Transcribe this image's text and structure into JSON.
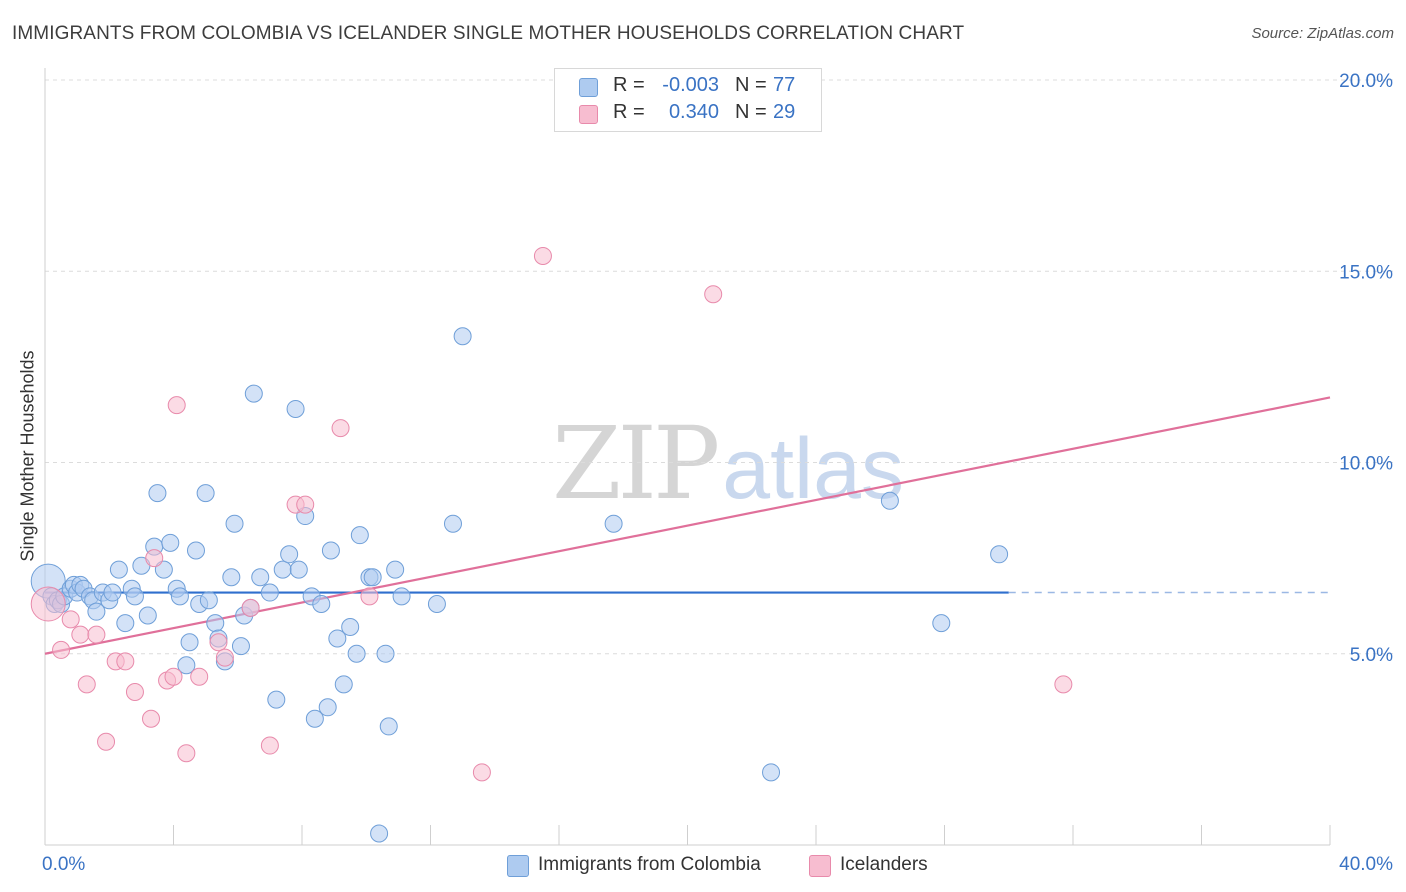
{
  "header": {
    "title": "IMMIGRANTS FROM COLOMBIA VS ICELANDER SINGLE MOTHER HOUSEHOLDS CORRELATION CHART",
    "source": "Source: ZipAtlas.com"
  },
  "watermark": {
    "zip": "ZIP",
    "atlas": "atlas"
  },
  "legend_top": [
    {
      "r_label": "R =",
      "r_value": "-0.003",
      "n_label": "N =",
      "n_value": "77",
      "color": "#aecbf0"
    },
    {
      "r_label": "R =",
      "r_value": "0.340",
      "n_label": "N =",
      "n_value": "29",
      "color": "#f7bdd0"
    }
  ],
  "legend_bottom": [
    {
      "label": "Immigrants from Colombia",
      "color": "#aecbf0"
    },
    {
      "label": "Icelanders",
      "color": "#f7bdd0"
    }
  ],
  "chart_data": {
    "type": "scatter",
    "title": "IMMIGRANTS FROM COLOMBIA VS ICELANDER SINGLE MOTHER HOUSEHOLDS CORRELATION CHART",
    "xlabel": "",
    "ylabel": "Single Mother Households",
    "xlim": [
      0,
      40
    ],
    "ylim": [
      0,
      20
    ],
    "x_tick_labels": [
      "0.0%",
      "40.0%"
    ],
    "y_ticks": [
      5,
      10,
      15,
      20
    ],
    "y_tick_labels": [
      "5.0%",
      "10.0%",
      "15.0%",
      "20.0%"
    ],
    "grid": true,
    "legend_position": "top-center",
    "colors": {
      "axis_text": "#3a73c4",
      "blue_fill": "#aecbf0",
      "blue_stroke": "#6f9fd8",
      "pink_fill": "#f7bdd0",
      "pink_stroke": "#e88aab",
      "blue_line": "#2f6fce",
      "pink_line": "#e0709a"
    },
    "series": [
      {
        "name": "Immigrants from Colombia",
        "r": -0.003,
        "n": 77,
        "trend": {
          "x0": 0,
          "y0": 6.6,
          "x1": 30,
          "y1": 6.6,
          "dashed_to": 40
        },
        "points": [
          [
            0.1,
            6.9
          ],
          [
            0.2,
            6.5
          ],
          [
            0.3,
            6.3
          ],
          [
            0.4,
            6.4
          ],
          [
            0.5,
            6.3
          ],
          [
            0.6,
            6.5
          ],
          [
            0.8,
            6.7
          ],
          [
            0.9,
            6.8
          ],
          [
            1.0,
            6.6
          ],
          [
            1.1,
            6.8
          ],
          [
            1.2,
            6.7
          ],
          [
            1.4,
            6.5
          ],
          [
            1.5,
            6.4
          ],
          [
            1.6,
            6.1
          ],
          [
            1.8,
            6.6
          ],
          [
            2.0,
            6.4
          ],
          [
            2.1,
            6.6
          ],
          [
            2.3,
            7.2
          ],
          [
            2.5,
            5.8
          ],
          [
            2.7,
            6.7
          ],
          [
            2.8,
            6.5
          ],
          [
            3.0,
            7.3
          ],
          [
            3.2,
            6.0
          ],
          [
            3.4,
            7.8
          ],
          [
            3.5,
            9.2
          ],
          [
            3.7,
            7.2
          ],
          [
            3.9,
            7.9
          ],
          [
            4.1,
            6.7
          ],
          [
            4.2,
            6.5
          ],
          [
            4.4,
            4.7
          ],
          [
            4.5,
            5.3
          ],
          [
            4.7,
            7.7
          ],
          [
            4.8,
            6.3
          ],
          [
            5.0,
            9.2
          ],
          [
            5.1,
            6.4
          ],
          [
            5.3,
            5.8
          ],
          [
            5.4,
            5.4
          ],
          [
            5.6,
            4.8
          ],
          [
            5.8,
            7.0
          ],
          [
            5.9,
            8.4
          ],
          [
            6.1,
            5.2
          ],
          [
            6.2,
            6.0
          ],
          [
            6.4,
            6.2
          ],
          [
            6.5,
            11.8
          ],
          [
            6.7,
            7.0
          ],
          [
            7.0,
            6.6
          ],
          [
            7.2,
            3.8
          ],
          [
            7.4,
            7.2
          ],
          [
            7.6,
            7.6
          ],
          [
            7.8,
            11.4
          ],
          [
            7.9,
            7.2
          ],
          [
            8.1,
            8.6
          ],
          [
            8.3,
            6.5
          ],
          [
            8.4,
            3.3
          ],
          [
            8.6,
            6.3
          ],
          [
            8.8,
            3.6
          ],
          [
            8.9,
            7.7
          ],
          [
            9.1,
            5.4
          ],
          [
            9.3,
            4.2
          ],
          [
            9.5,
            5.7
          ],
          [
            9.7,
            5.0
          ],
          [
            9.8,
            8.1
          ],
          [
            10.1,
            7.0
          ],
          [
            10.2,
            7.0
          ],
          [
            10.4,
            0.3
          ],
          [
            10.6,
            5.0
          ],
          [
            10.7,
            3.1
          ],
          [
            10.9,
            7.2
          ],
          [
            11.1,
            6.5
          ],
          [
            12.2,
            6.3
          ],
          [
            12.7,
            8.4
          ],
          [
            13.0,
            13.3
          ],
          [
            17.7,
            8.4
          ],
          [
            22.6,
            1.9
          ],
          [
            26.3,
            9.0
          ],
          [
            27.9,
            5.8
          ],
          [
            29.7,
            7.6
          ]
        ]
      },
      {
        "name": "Icelanders",
        "r": 0.34,
        "n": 29,
        "trend": {
          "x0": 0,
          "y0": 5.0,
          "x1": 40,
          "y1": 11.7
        },
        "points": [
          [
            0.1,
            6.3
          ],
          [
            0.5,
            5.1
          ],
          [
            0.8,
            5.9
          ],
          [
            1.1,
            5.5
          ],
          [
            1.3,
            4.2
          ],
          [
            1.6,
            5.5
          ],
          [
            1.9,
            2.7
          ],
          [
            2.2,
            4.8
          ],
          [
            2.5,
            4.8
          ],
          [
            2.8,
            4.0
          ],
          [
            3.3,
            3.3
          ],
          [
            3.4,
            7.5
          ],
          [
            3.8,
            4.3
          ],
          [
            4.0,
            4.4
          ],
          [
            4.1,
            11.5
          ],
          [
            4.4,
            2.4
          ],
          [
            4.8,
            4.4
          ],
          [
            5.4,
            5.3
          ],
          [
            5.6,
            4.9
          ],
          [
            6.4,
            6.2
          ],
          [
            7.0,
            2.6
          ],
          [
            7.8,
            8.9
          ],
          [
            8.1,
            8.9
          ],
          [
            9.2,
            10.9
          ],
          [
            10.1,
            6.5
          ],
          [
            13.6,
            1.9
          ],
          [
            15.5,
            15.4
          ],
          [
            20.8,
            14.4
          ],
          [
            31.7,
            4.2
          ]
        ]
      }
    ]
  }
}
